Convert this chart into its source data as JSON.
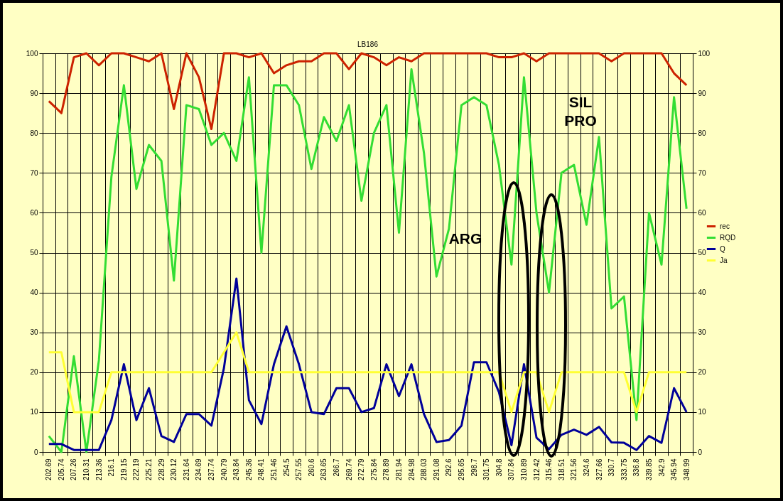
{
  "chart_data": {
    "type": "line",
    "title": "LB186",
    "categories": [
      "202.69",
      "205.74",
      "207.26",
      "210.31",
      "213.36",
      "216.1",
      "219.15",
      "222.19",
      "225.21",
      "228.29",
      "230.12",
      "231.64",
      "234.69",
      "237.74",
      "240.79",
      "243.84",
      "245.36",
      "248.41",
      "251.46",
      "254.5",
      "257.55",
      "260.6",
      "263.65",
      "266.7",
      "269.74",
      "272.79",
      "275.84",
      "278.89",
      "281.94",
      "284.98",
      "288.03",
      "291.08",
      "292.6",
      "295.65",
      "298.7",
      "301.75",
      "304.8",
      "307.84",
      "310.89",
      "312.42",
      "315.46",
      "318.51",
      "321.56",
      "324.6",
      "327.66",
      "330.7",
      "333.75",
      "336.8",
      "339.85",
      "342.9",
      "345.94",
      "348.99"
    ],
    "series": [
      {
        "name": "rec",
        "color": "#cc2200",
        "values": [
          88,
          85,
          99,
          100,
          97,
          100,
          100,
          99,
          98,
          100,
          86,
          100,
          94,
          81,
          100,
          100,
          99,
          100,
          95,
          97,
          98,
          98,
          100,
          100,
          96,
          100,
          99,
          97,
          99,
          98,
          100,
          100,
          100,
          100,
          100,
          100,
          99,
          99,
          100,
          98,
          100,
          100,
          100,
          100,
          100,
          98,
          100,
          100,
          100,
          100,
          95,
          92
        ]
      },
      {
        "name": "RQD",
        "color": "#33dd33",
        "values": [
          4,
          0,
          24,
          0,
          23,
          69,
          92,
          66,
          77,
          73,
          43,
          87,
          86,
          77,
          80,
          73,
          94,
          50,
          92,
          92,
          87,
          71,
          84,
          78,
          87,
          63,
          80,
          87,
          55,
          96,
          75,
          44,
          56,
          87,
          89,
          87,
          72,
          47,
          94,
          60,
          40,
          70,
          72,
          57,
          79,
          36,
          39,
          8,
          60,
          47,
          89,
          61
        ]
      },
      {
        "name": "Q",
        "color": "#000099",
        "values": [
          2,
          2,
          0.5,
          0.5,
          0.5,
          8,
          22,
          8,
          16,
          4,
          2.5,
          9.5,
          9.5,
          6.6,
          21,
          43.5,
          13,
          7,
          22,
          31.5,
          22,
          10,
          9.5,
          16,
          16,
          10,
          11,
          22,
          14,
          22,
          9.5,
          2.5,
          3,
          6.6,
          22.5,
          22.5,
          15,
          1.7,
          22,
          3.6,
          0.7,
          4.3,
          5.6,
          4.3,
          6.3,
          2.4,
          2.3,
          0.5,
          4,
          2.3,
          16,
          10
        ]
      },
      {
        "name": "Ja",
        "color": "#ffff33",
        "values": [
          25,
          25,
          10,
          10,
          10,
          20,
          20,
          20,
          20,
          20,
          20,
          20,
          20,
          20,
          25,
          30,
          20,
          20,
          20,
          20,
          20,
          20,
          20,
          20,
          20,
          20,
          20,
          20,
          20,
          20,
          20,
          20,
          20,
          20,
          20,
          20,
          20,
          10,
          20,
          20,
          10,
          20,
          20,
          20,
          20,
          20,
          20,
          10,
          20,
          20,
          20,
          20
        ]
      }
    ],
    "ylim": [
      0,
      100
    ],
    "yticks": [
      0,
      10,
      20,
      30,
      40,
      50,
      60,
      70,
      80,
      90,
      100
    ],
    "y2lim": [
      0,
      100
    ],
    "y2ticks": [
      0,
      10,
      20,
      30,
      40,
      50,
      60,
      70,
      80,
      90,
      100
    ],
    "grid": true,
    "legend": "right",
    "marker": "none",
    "line_style": "solid",
    "annotations": [
      "ARG",
      "SIL\nPRO"
    ]
  }
}
